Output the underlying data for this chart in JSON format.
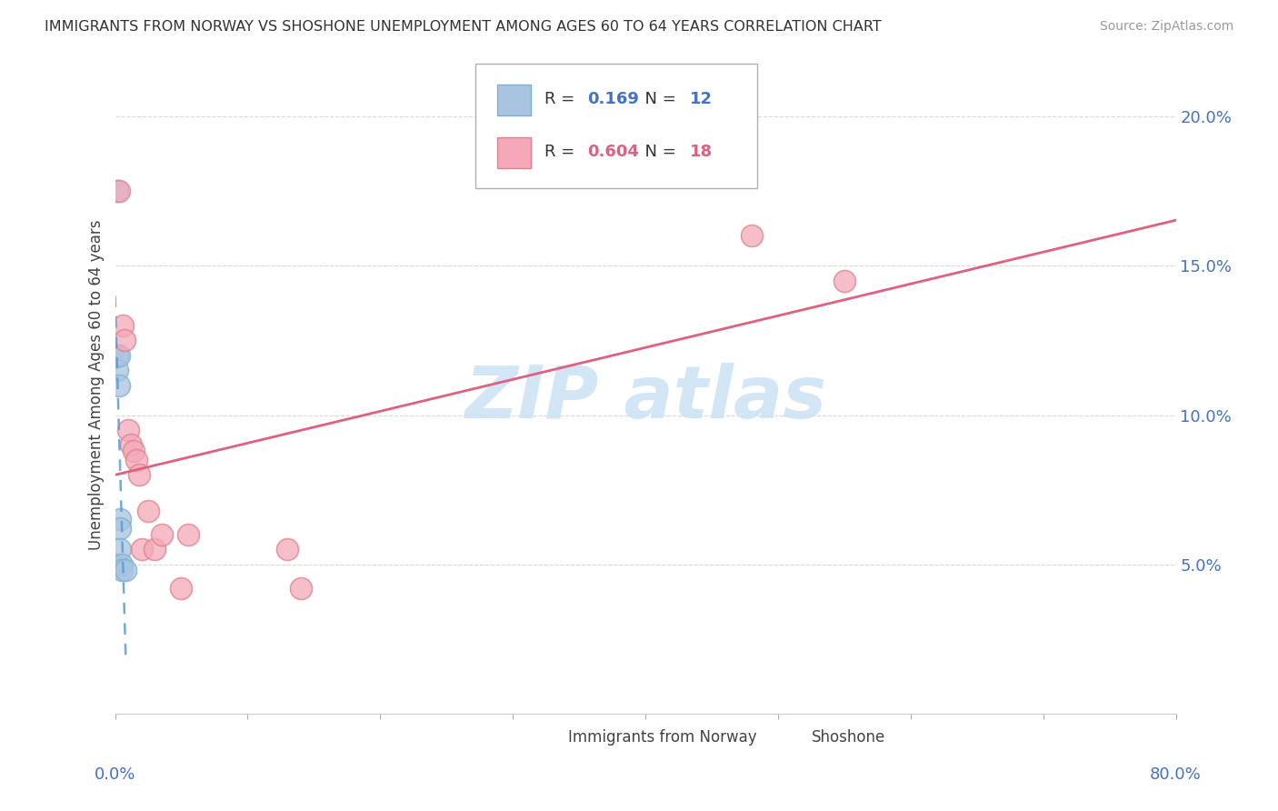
{
  "title": "IMMIGRANTS FROM NORWAY VS SHOSHONE UNEMPLOYMENT AMONG AGES 60 TO 64 YEARS CORRELATION CHART",
  "source": "Source: ZipAtlas.com",
  "ylabel": "Unemployment Among Ages 60 to 64 years",
  "legend_norway_r": "0.169",
  "legend_norway_n": "12",
  "legend_shoshone_r": "0.604",
  "legend_shoshone_n": "18",
  "norway_color": "#a8c4e0",
  "norway_edge_color": "#7bafd4",
  "shoshone_color": "#f4a8b8",
  "shoshone_edge_color": "#e08090",
  "norway_line_color": "#5b9bd5",
  "shoshone_line_color": "#e06080",
  "r_norway_color": "#4472c4",
  "r_shoshone_color": "#e06080",
  "axis_color": "#4472c4",
  "grid_color": "#d8d8d8",
  "watermark_color": "#cde4f5",
  "background_color": "#ffffff",
  "norway_x": [
    0.002,
    0.002,
    0.002,
    0.002,
    0.003,
    0.003,
    0.004,
    0.004,
    0.004,
    0.005,
    0.005,
    0.008
  ],
  "norway_y": [
    0.175,
    0.12,
    0.115,
    0.05,
    0.12,
    0.11,
    0.065,
    0.062,
    0.055,
    0.05,
    0.048,
    0.048
  ],
  "shoshone_x": [
    0.003,
    0.006,
    0.007,
    0.01,
    0.012,
    0.014,
    0.016,
    0.018,
    0.02,
    0.025,
    0.03,
    0.035,
    0.05,
    0.055,
    0.13,
    0.14,
    0.48,
    0.55
  ],
  "shoshone_y": [
    0.175,
    0.13,
    0.125,
    0.095,
    0.09,
    0.088,
    0.085,
    0.08,
    0.055,
    0.068,
    0.055,
    0.06,
    0.042,
    0.06,
    0.055,
    0.042,
    0.16,
    0.145
  ],
  "xlim": [
    0.0,
    0.8
  ],
  "ylim": [
    0.0,
    0.22
  ],
  "y_ticks": [
    0.05,
    0.1,
    0.15,
    0.2
  ],
  "y_tick_labels": [
    "5.0%",
    "10.0%",
    "15.0%",
    "20.0%"
  ],
  "x_tick_left": "0.0%",
  "x_tick_right": "80.0%"
}
